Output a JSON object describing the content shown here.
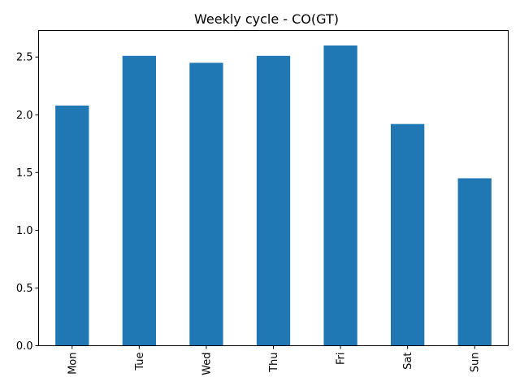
{
  "chart_data": {
    "type": "bar",
    "title": "Weekly cycle - CO(GT)",
    "xlabel": "",
    "ylabel": "",
    "categories": [
      "Mon",
      "Tue",
      "Wed",
      "Thu",
      "Fri",
      "Sat",
      "Sun"
    ],
    "values": [
      2.08,
      2.51,
      2.45,
      2.51,
      2.6,
      1.92,
      1.45
    ],
    "ylim": [
      0,
      2.73
    ],
    "yticks": [
      "0.0",
      "0.5",
      "1.0",
      "1.5",
      "2.0",
      "2.5"
    ],
    "ytick_values": [
      0,
      0.5,
      1.0,
      1.5,
      2.0,
      2.5
    ],
    "bar_color": "#1f77b4",
    "grid": false,
    "xtick_rotation": "vertical"
  }
}
